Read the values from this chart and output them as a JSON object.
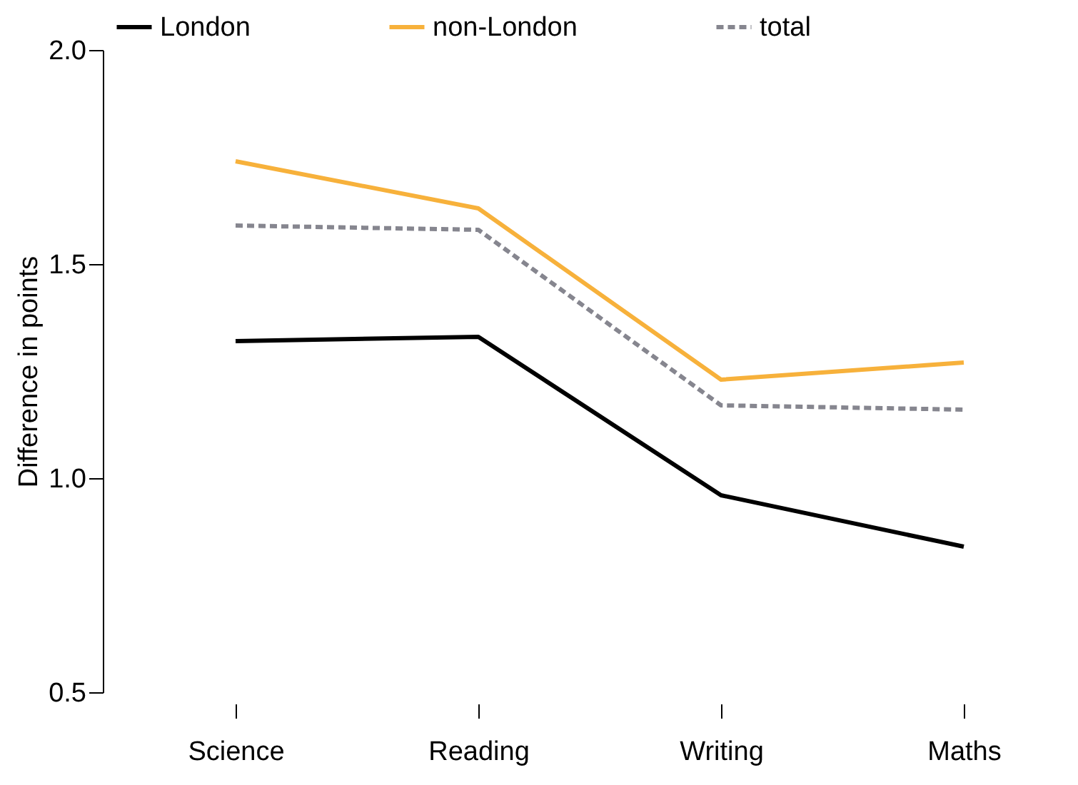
{
  "chart_data": {
    "type": "line",
    "ylabel": "Difference in points",
    "categories": [
      "Science",
      "Reading",
      "Writing",
      "Maths"
    ],
    "series": [
      {
        "name": "London",
        "color": "#000000",
        "values": [
          1.32,
          1.33,
          0.96,
          0.84
        ]
      },
      {
        "name": "non-London",
        "color": "#f7b13b",
        "values": [
          1.74,
          1.63,
          1.23,
          1.27
        ]
      },
      {
        "name": "total",
        "color": "#86868f",
        "line_style": "dashed",
        "values": [
          1.59,
          1.58,
          1.17,
          1.16
        ]
      }
    ],
    "ylim": [
      0.5,
      2.0
    ],
    "yticks": [
      0.5,
      {
        "value": 1,
        "label": "1.0"
      },
      1.5,
      {
        "value": 2,
        "label": "2.0"
      }
    ],
    "grid": false,
    "legend": "top",
    "marker": "none",
    "line_style": "solid"
  }
}
